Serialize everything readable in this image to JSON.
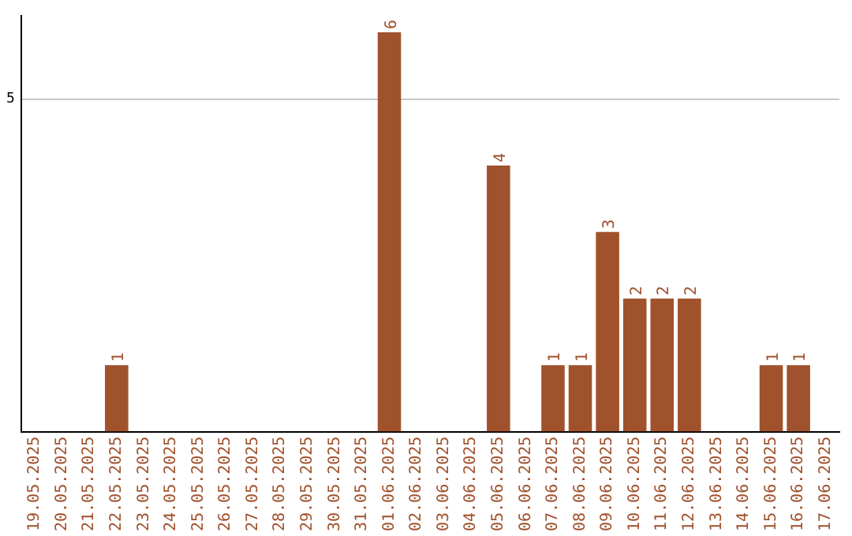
{
  "chart_data": {
    "type": "bar",
    "categories": [
      "19.05.2025",
      "20.05.2025",
      "21.05.2025",
      "22.05.2025",
      "23.05.2025",
      "24.05.2025",
      "25.05.2025",
      "26.05.2025",
      "27.05.2025",
      "28.05.2025",
      "29.05.2025",
      "30.05.2025",
      "31.05.2025",
      "01.06.2025",
      "02.06.2025",
      "03.06.2025",
      "04.06.2025",
      "05.06.2025",
      "06.06.2025",
      "07.06.2025",
      "08.06.2025",
      "09.06.2025",
      "10.06.2025",
      "11.06.2025",
      "12.06.2025",
      "13.06.2025",
      "14.06.2025",
      "15.06.2025",
      "16.06.2025",
      "17.06.2025"
    ],
    "values": [
      0,
      0,
      0,
      1,
      0,
      0,
      0,
      0,
      0,
      0,
      0,
      0,
      0,
      6,
      0,
      0,
      0,
      4,
      0,
      1,
      1,
      3,
      2,
      2,
      2,
      0,
      0,
      1,
      1,
      0
    ],
    "value_labels": [
      null,
      null,
      null,
      "1",
      null,
      null,
      null,
      null,
      null,
      null,
      null,
      null,
      null,
      "6",
      null,
      null,
      null,
      "4",
      null,
      "1",
      "1",
      "3",
      "2",
      "2",
      "2",
      null,
      null,
      "1",
      "1",
      null
    ],
    "color": "#a0522d",
    "ylim": [
      0,
      6.25
    ],
    "yticks": [
      5
    ],
    "grid": "y",
    "legend": false
  }
}
